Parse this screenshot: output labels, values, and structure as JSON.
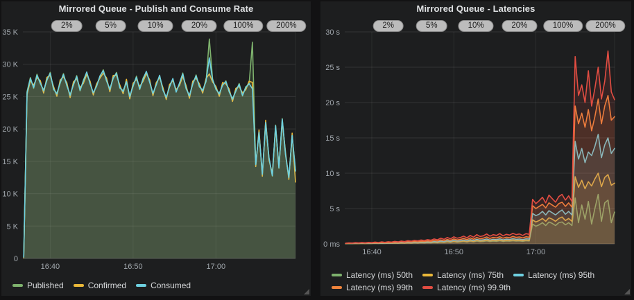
{
  "theme": {
    "page_bg": "#121213",
    "panel_bg": "#1d1e1f",
    "badge_bg": "#bcbcbc",
    "tick_color": "#a2a8ae",
    "title_color": "#e0e2e4"
  },
  "chart_data": [
    {
      "type": "area",
      "title": "Mirrored Queue - Publish and Consume Rate",
      "xlabel": "",
      "ylabel": "",
      "grid": true,
      "legend_position": "bottom-left",
      "x": {
        "start": 36.8,
        "step": 0.4,
        "unit": "minutes after 16:00"
      },
      "xlim": [
        36.7,
        69.6
      ],
      "ylim": [
        0,
        35000
      ],
      "x_ticks": [
        {
          "v": 40,
          "label": "16:40"
        },
        {
          "v": 50,
          "label": "16:50"
        },
        {
          "v": 60,
          "label": "17:00"
        }
      ],
      "y_ticks": [
        {
          "v": 0,
          "label": "0"
        },
        {
          "v": 5000,
          "label": "5 K"
        },
        {
          "v": 10000,
          "label": "10 K"
        },
        {
          "v": 15000,
          "label": "15 K"
        },
        {
          "v": 20000,
          "label": "20 K"
        },
        {
          "v": 25000,
          "label": "25 K"
        },
        {
          "v": 30000,
          "label": "30 K"
        },
        {
          "v": 35000,
          "label": "35 K"
        }
      ],
      "annotations": [
        {
          "label": "2%",
          "t": 42.0
        },
        {
          "label": "5%",
          "t": 47.3
        },
        {
          "label": "10%",
          "t": 52.7
        },
        {
          "label": "20%",
          "t": 58.0
        },
        {
          "label": "100%",
          "t": 63.3
        },
        {
          "label": "200%",
          "t": 68.5
        }
      ],
      "series": [
        {
          "name": "Published",
          "color": "#7EB26D",
          "values": [
            300,
            25800,
            27950,
            26280,
            28450,
            26980,
            26050,
            27480,
            28750,
            26080,
            25550,
            27080,
            28550,
            26680,
            25350,
            26780,
            28250,
            25880,
            27550,
            28680,
            27150,
            25480,
            26750,
            28080,
            29150,
            27380,
            26250,
            27780,
            28750,
            26280,
            25950,
            27180,
            25150,
            26580,
            28150,
            26080,
            27850,
            28780,
            27350,
            25380,
            26950,
            28180,
            26150,
            24780,
            26650,
            27680,
            25850,
            26980,
            28650,
            26180,
            25250,
            26880,
            28350,
            26480,
            26050,
            27280,
            33900,
            27730,
            26100,
            25530,
            26700,
            27430,
            25700,
            24730,
            25800,
            27030,
            25100,
            26530,
            26900,
            33400,
            14600,
            19420,
            13100,
            20920,
            15600,
            12720,
            20600,
            13920,
            21600,
            15920,
            12600,
            18920,
            13600
          ]
        },
        {
          "name": "Confirmed",
          "color": "#EAB839",
          "values": [
            100,
            25300,
            27450,
            26780,
            27950,
            27480,
            25550,
            27980,
            28250,
            26580,
            25050,
            27580,
            28050,
            27180,
            24850,
            27280,
            27750,
            26380,
            27050,
            28420,
            27380,
            25250,
            26980,
            27850,
            28620,
            27880,
            25750,
            28280,
            28250,
            26780,
            25450,
            27680,
            24650,
            27080,
            27650,
            26580,
            27350,
            28520,
            27580,
            25150,
            27180,
            27950,
            26380,
            24550,
            26880,
            27450,
            26080,
            26750,
            28120,
            26680,
            24750,
            27380,
            27850,
            26980,
            25550,
            27780,
            28500,
            27250,
            26580,
            25050,
            27180,
            26950,
            26180,
            24250,
            26280,
            26550,
            25580,
            26050,
            27380,
            27200,
            14200,
            19850,
            12700,
            21350,
            15200,
            13150,
            20200,
            14350,
            21150,
            16350,
            12200,
            19350,
            11800
          ]
        },
        {
          "name": "Consumed",
          "color": "#6ED0E0",
          "values": [
            200,
            25600,
            27800,
            26400,
            28300,
            27100,
            25900,
            27600,
            28600,
            26200,
            25400,
            27200,
            28400,
            26800,
            25200,
            26900,
            28100,
            26000,
            27400,
            28800,
            27000,
            25600,
            26600,
            28200,
            29000,
            27500,
            26100,
            27900,
            28600,
            26400,
            25800,
            27300,
            25000,
            26700,
            28000,
            26200,
            27700,
            28900,
            27200,
            25500,
            26800,
            28300,
            26000,
            24900,
            26500,
            27800,
            25700,
            27100,
            28500,
            26300,
            25100,
            27000,
            28200,
            26600,
            25900,
            27400,
            31000,
            27600,
            26200,
            25400,
            26800,
            27300,
            25800,
            24600,
            25900,
            26900,
            25200,
            26400,
            27000,
            26200,
            14500,
            19500,
            13000,
            21000,
            15500,
            12800,
            20500,
            14000,
            21500,
            16000,
            12500,
            19000,
            13500
          ]
        }
      ]
    },
    {
      "type": "area",
      "title": "Mirrored Queue - Latencies",
      "xlabel": "",
      "ylabel": "",
      "grid": true,
      "legend_position": "bottom-left",
      "x": {
        "start": 36.8,
        "step": 0.4,
        "unit": "minutes after 16:00"
      },
      "xlim": [
        36.7,
        69.6
      ],
      "ylim": [
        0,
        30
      ],
      "x_ticks": [
        {
          "v": 40,
          "label": "16:40"
        },
        {
          "v": 50,
          "label": "16:50"
        },
        {
          "v": 60,
          "label": "17:00"
        }
      ],
      "y_ticks": [
        {
          "v": 0,
          "label": "0 ms"
        },
        {
          "v": 5,
          "label": "5 s"
        },
        {
          "v": 10,
          "label": "10 s"
        },
        {
          "v": 15,
          "label": "15 s"
        },
        {
          "v": 20,
          "label": "20 s"
        },
        {
          "v": 25,
          "label": "25 s"
        },
        {
          "v": 30,
          "label": "30 s"
        }
      ],
      "annotations": [
        {
          "label": "2%",
          "t": 42.0
        },
        {
          "label": "5%",
          "t": 47.3
        },
        {
          "label": "10%",
          "t": 52.7
        },
        {
          "label": "20%",
          "t": 58.0
        },
        {
          "label": "100%",
          "t": 63.3
        },
        {
          "label": "200%",
          "t": 68.5
        }
      ],
      "series": [
        {
          "name": "Latency (ms) 50th",
          "color": "#7EB26D",
          "values": [
            0.03,
            0.05,
            0.04,
            0.05,
            0.05,
            0.06,
            0.05,
            0.07,
            0.05,
            0.08,
            0.06,
            0.08,
            0.07,
            0.09,
            0.08,
            0.11,
            0.08,
            0.12,
            0.1,
            0.14,
            0.11,
            0.15,
            0.13,
            0.17,
            0.14,
            0.18,
            0.16,
            0.21,
            0.17,
            0.24,
            0.2,
            0.27,
            0.22,
            0.3,
            0.24,
            0.27,
            0.33,
            0.26,
            0.36,
            0.29,
            0.39,
            0.32,
            0.35,
            0.42,
            0.33,
            0.39,
            0.36,
            0.44,
            0.35,
            0.41,
            0.38,
            0.45,
            0.39,
            0.42,
            0.36,
            0.44,
            0.41,
            2.8,
            2.5,
            2.7,
            3.0,
            2.6,
            3.1,
            2.9,
            2.6,
            3.0,
            3.1,
            2.7,
            3.0,
            2.6,
            6.5,
            3.0,
            5.5,
            3.5,
            6.0,
            2.8,
            5.0,
            7.0,
            3.2,
            5.8,
            6.2,
            3.0,
            4.5
          ]
        },
        {
          "name": "Latency (ms) 75th",
          "color": "#EAB839",
          "values": [
            0.04,
            0.06,
            0.05,
            0.07,
            0.06,
            0.08,
            0.06,
            0.08,
            0.07,
            0.1,
            0.08,
            0.11,
            0.08,
            0.11,
            0.1,
            0.13,
            0.11,
            0.15,
            0.12,
            0.17,
            0.14,
            0.19,
            0.16,
            0.21,
            0.18,
            0.23,
            0.2,
            0.27,
            0.22,
            0.3,
            0.25,
            0.34,
            0.27,
            0.38,
            0.3,
            0.34,
            0.42,
            0.32,
            0.46,
            0.36,
            0.49,
            0.4,
            0.44,
            0.53,
            0.42,
            0.49,
            0.46,
            0.55,
            0.44,
            0.51,
            0.48,
            0.57,
            0.49,
            0.53,
            0.46,
            0.55,
            0.51,
            3.4,
            3.1,
            3.3,
            3.6,
            3.2,
            3.7,
            3.5,
            3.2,
            3.6,
            3.8,
            3.3,
            3.6,
            3.2,
            9.5,
            8.0,
            9.0,
            7.8,
            8.8,
            8.2,
            9.2,
            10.0,
            8.1,
            9.4,
            9.8,
            8.3,
            8.6
          ]
        },
        {
          "name": "Latency (ms) 95th",
          "color": "#6ED0E0",
          "values": [
            0.05,
            0.08,
            0.06,
            0.09,
            0.08,
            0.1,
            0.08,
            0.11,
            0.09,
            0.13,
            0.1,
            0.14,
            0.11,
            0.15,
            0.13,
            0.18,
            0.14,
            0.2,
            0.16,
            0.23,
            0.19,
            0.25,
            0.21,
            0.28,
            0.24,
            0.3,
            0.26,
            0.35,
            0.29,
            0.4,
            0.33,
            0.45,
            0.36,
            0.5,
            0.4,
            0.45,
            0.55,
            0.43,
            0.6,
            0.48,
            0.65,
            0.53,
            0.58,
            0.7,
            0.55,
            0.65,
            0.6,
            0.73,
            0.58,
            0.68,
            0.63,
            0.75,
            0.65,
            0.7,
            0.6,
            0.73,
            0.68,
            4.3,
            4.0,
            4.2,
            4.6,
            4.1,
            4.7,
            4.4,
            4.1,
            4.5,
            4.8,
            4.2,
            4.6,
            4.1,
            14.5,
            12.0,
            13.5,
            11.5,
            13.0,
            12.5,
            13.8,
            15.5,
            12.2,
            14.0,
            15.0,
            12.8,
            13.5
          ]
        },
        {
          "name": "Latency (ms) 99th",
          "color": "#EF843C",
          "values": [
            0.07,
            0.1,
            0.09,
            0.13,
            0.11,
            0.14,
            0.11,
            0.15,
            0.13,
            0.17,
            0.14,
            0.2,
            0.15,
            0.21,
            0.17,
            0.24,
            0.2,
            0.28,
            0.22,
            0.31,
            0.27,
            0.35,
            0.29,
            0.38,
            0.34,
            0.42,
            0.36,
            0.49,
            0.41,
            0.56,
            0.45,
            0.63,
            0.5,
            0.7,
            0.56,
            0.63,
            0.77,
            0.6,
            0.84,
            0.66,
            0.91,
            0.73,
            0.8,
            0.98,
            0.77,
            0.91,
            0.84,
            1.01,
            0.8,
            0.94,
            0.87,
            1.05,
            0.91,
            0.98,
            0.84,
            1.01,
            0.94,
            5.4,
            5.0,
            5.3,
            5.6,
            5.1,
            5.8,
            5.5,
            5.2,
            5.7,
            5.9,
            5.3,
            5.8,
            5.2,
            19.5,
            17.0,
            18.5,
            16.5,
            19.0,
            16.0,
            18.0,
            20.5,
            17.0,
            19.5,
            21.0,
            17.5,
            18.0
          ]
        },
        {
          "name": "Latency (ms) 99.9th",
          "color": "#E24D42",
          "values": [
            0.1,
            0.15,
            0.12,
            0.18,
            0.15,
            0.2,
            0.16,
            0.22,
            0.18,
            0.25,
            0.2,
            0.28,
            0.22,
            0.3,
            0.25,
            0.35,
            0.28,
            0.4,
            0.32,
            0.45,
            0.38,
            0.5,
            0.42,
            0.55,
            0.48,
            0.6,
            0.52,
            0.7,
            0.58,
            0.8,
            0.65,
            0.9,
            0.72,
            1.0,
            0.8,
            0.9,
            1.1,
            0.85,
            1.2,
            0.95,
            1.3,
            1.05,
            1.15,
            1.4,
            1.1,
            1.3,
            1.2,
            1.45,
            1.15,
            1.35,
            1.25,
            1.5,
            1.3,
            1.4,
            1.2,
            1.45,
            1.35,
            6.3,
            5.7,
            6.1,
            6.6,
            5.8,
            6.9,
            6.4,
            5.9,
            6.7,
            7.0,
            6.2,
            6.8,
            6.0,
            26.5,
            21.0,
            22.5,
            20.0,
            24.5,
            19.5,
            22.0,
            25.0,
            20.5,
            23.0,
            27.3,
            21.5,
            20.4
          ]
        }
      ]
    }
  ]
}
